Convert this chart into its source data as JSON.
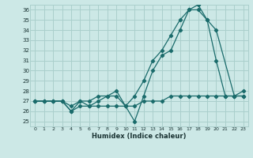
{
  "xlabel": "Humidex (Indice chaleur)",
  "bg_color": "#cce8e6",
  "grid_color": "#aacfcc",
  "line_color": "#1a6b6b",
  "xlim": [
    -0.5,
    23.5
  ],
  "ylim": [
    24.5,
    36.5
  ],
  "xticks": [
    0,
    1,
    2,
    3,
    4,
    5,
    6,
    7,
    8,
    9,
    10,
    11,
    12,
    13,
    14,
    15,
    16,
    17,
    18,
    19,
    20,
    21,
    22,
    23
  ],
  "yticks": [
    25,
    26,
    27,
    28,
    29,
    30,
    31,
    32,
    33,
    34,
    35,
    36
  ],
  "line1_x": [
    0,
    1,
    2,
    3,
    4,
    5,
    6,
    7,
    8,
    9,
    10,
    11,
    12,
    13,
    14,
    15,
    16,
    17,
    18,
    19,
    20,
    21,
    22,
    23
  ],
  "line1_y": [
    27,
    27,
    27,
    27,
    26,
    27,
    26.5,
    27,
    27.5,
    27.5,
    26.5,
    27.5,
    29,
    31,
    32,
    33.5,
    35,
    36,
    36,
    35,
    31,
    27.5,
    27.5,
    27.5
  ],
  "line2_x": [
    0,
    1,
    2,
    3,
    4,
    5,
    6,
    7,
    8,
    9,
    10,
    11,
    12,
    13,
    14,
    15,
    16,
    17,
    18,
    19,
    20,
    22,
    23
  ],
  "line2_y": [
    27,
    27,
    27,
    27,
    26.5,
    27,
    27,
    27.5,
    27.5,
    28,
    26.5,
    25,
    27.5,
    30,
    31.5,
    32,
    34,
    36,
    36.5,
    35,
    34,
    27.5,
    28
  ],
  "line3_x": [
    0,
    1,
    2,
    3,
    4,
    5,
    6,
    7,
    8,
    9,
    10,
    11,
    12,
    13,
    14,
    15,
    16,
    17,
    18,
    19,
    20,
    21,
    22,
    23
  ],
  "line3_y": [
    27,
    27,
    27,
    27,
    26,
    26.5,
    26.5,
    26.5,
    26.5,
    26.5,
    26.5,
    26.5,
    27,
    27,
    27,
    27.5,
    27.5,
    27.5,
    27.5,
    27.5,
    27.5,
    27.5,
    27.5,
    27.5
  ]
}
